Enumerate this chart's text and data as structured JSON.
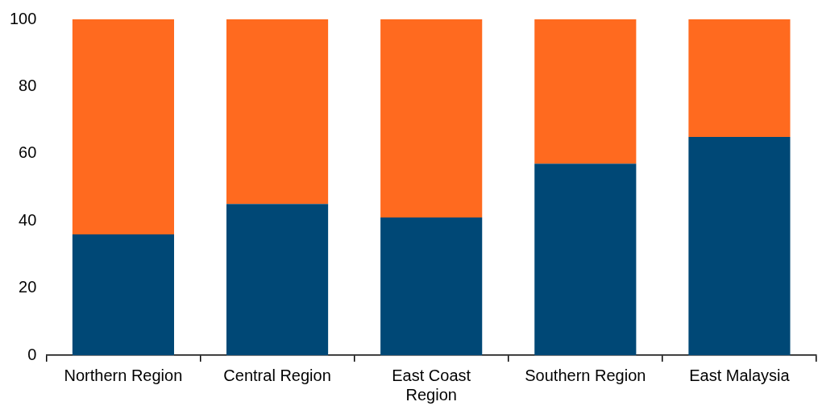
{
  "chart_data": {
    "type": "bar",
    "stacked": true,
    "categories": [
      "Northern Region",
      "Central Region",
      "East Coast Region",
      "Southern Region",
      "East Malaysia"
    ],
    "series": [
      {
        "color": "#004876",
        "values": [
          36,
          45,
          41,
          57,
          65
        ]
      },
      {
        "color": "#ff6a1f",
        "values": [
          64,
          55,
          59,
          43,
          35
        ]
      }
    ],
    "ylim": [
      0,
      100
    ],
    "yticks": [
      0,
      20,
      40,
      60,
      80,
      100
    ],
    "grid": false,
    "legend": false
  }
}
